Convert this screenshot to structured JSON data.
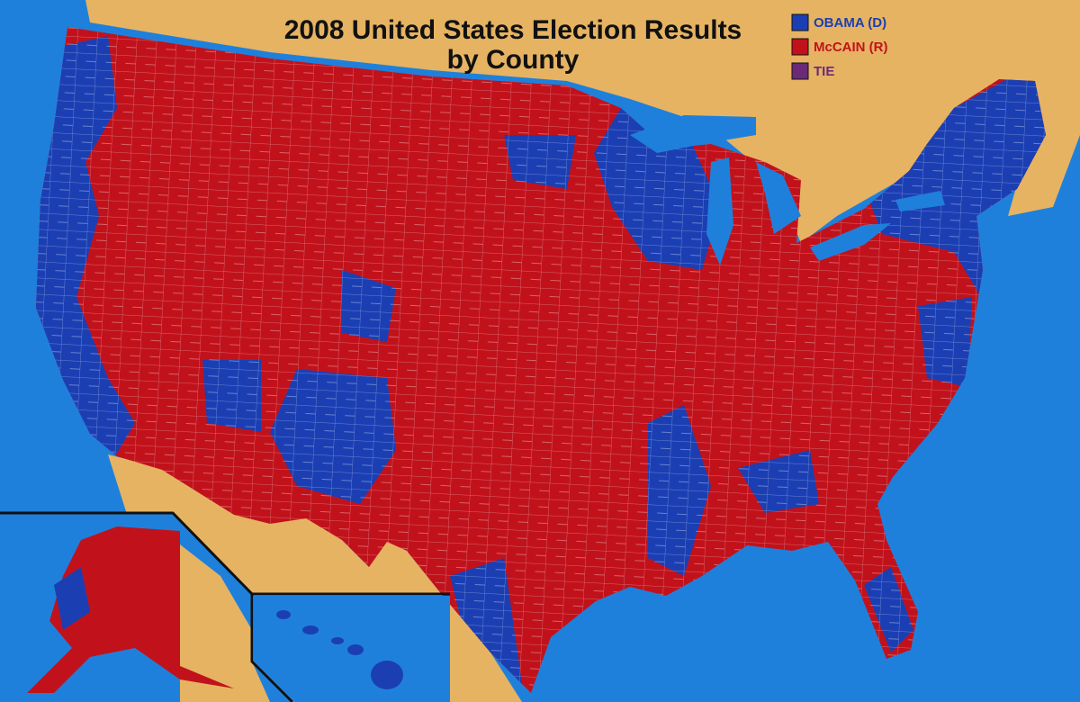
{
  "title": [
    "2008 United States Election Results",
    "by County"
  ],
  "legend": [
    {
      "label": "OBAMA (D)",
      "color": "#1b3fb3"
    },
    {
      "label": "McCAIN (R)",
      "color": "#c1121c"
    },
    {
      "label": "TIE",
      "color": "#6a2a78"
    }
  ]
}
